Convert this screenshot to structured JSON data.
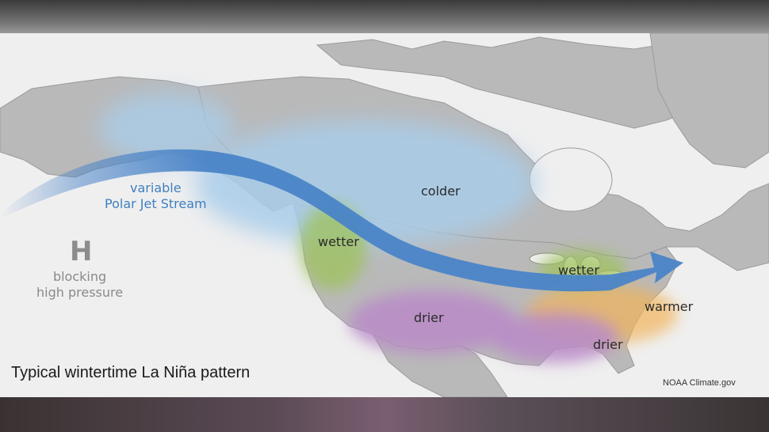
{
  "map": {
    "jet_stream": {
      "line1": "variable",
      "line2": "Polar Jet Stream"
    },
    "high_pressure": {
      "letter": "H",
      "line1": "blocking",
      "line2": "high pressure"
    },
    "regions": {
      "colder": "colder",
      "wetter_northwest": "wetter",
      "wetter_ohio_valley": "wetter",
      "drier_southwest": "drier",
      "drier_southeast": "drier",
      "warmer": "warmer"
    },
    "caption": "Typical wintertime La Niña pattern",
    "credit": "NOAA Climate.gov",
    "colors": {
      "jet_stream": "#4a84c8",
      "colder": "#a9cdea",
      "wetter": "#9ec25a",
      "drier": "#b98bc8",
      "warmer": "#f2b45a"
    }
  }
}
